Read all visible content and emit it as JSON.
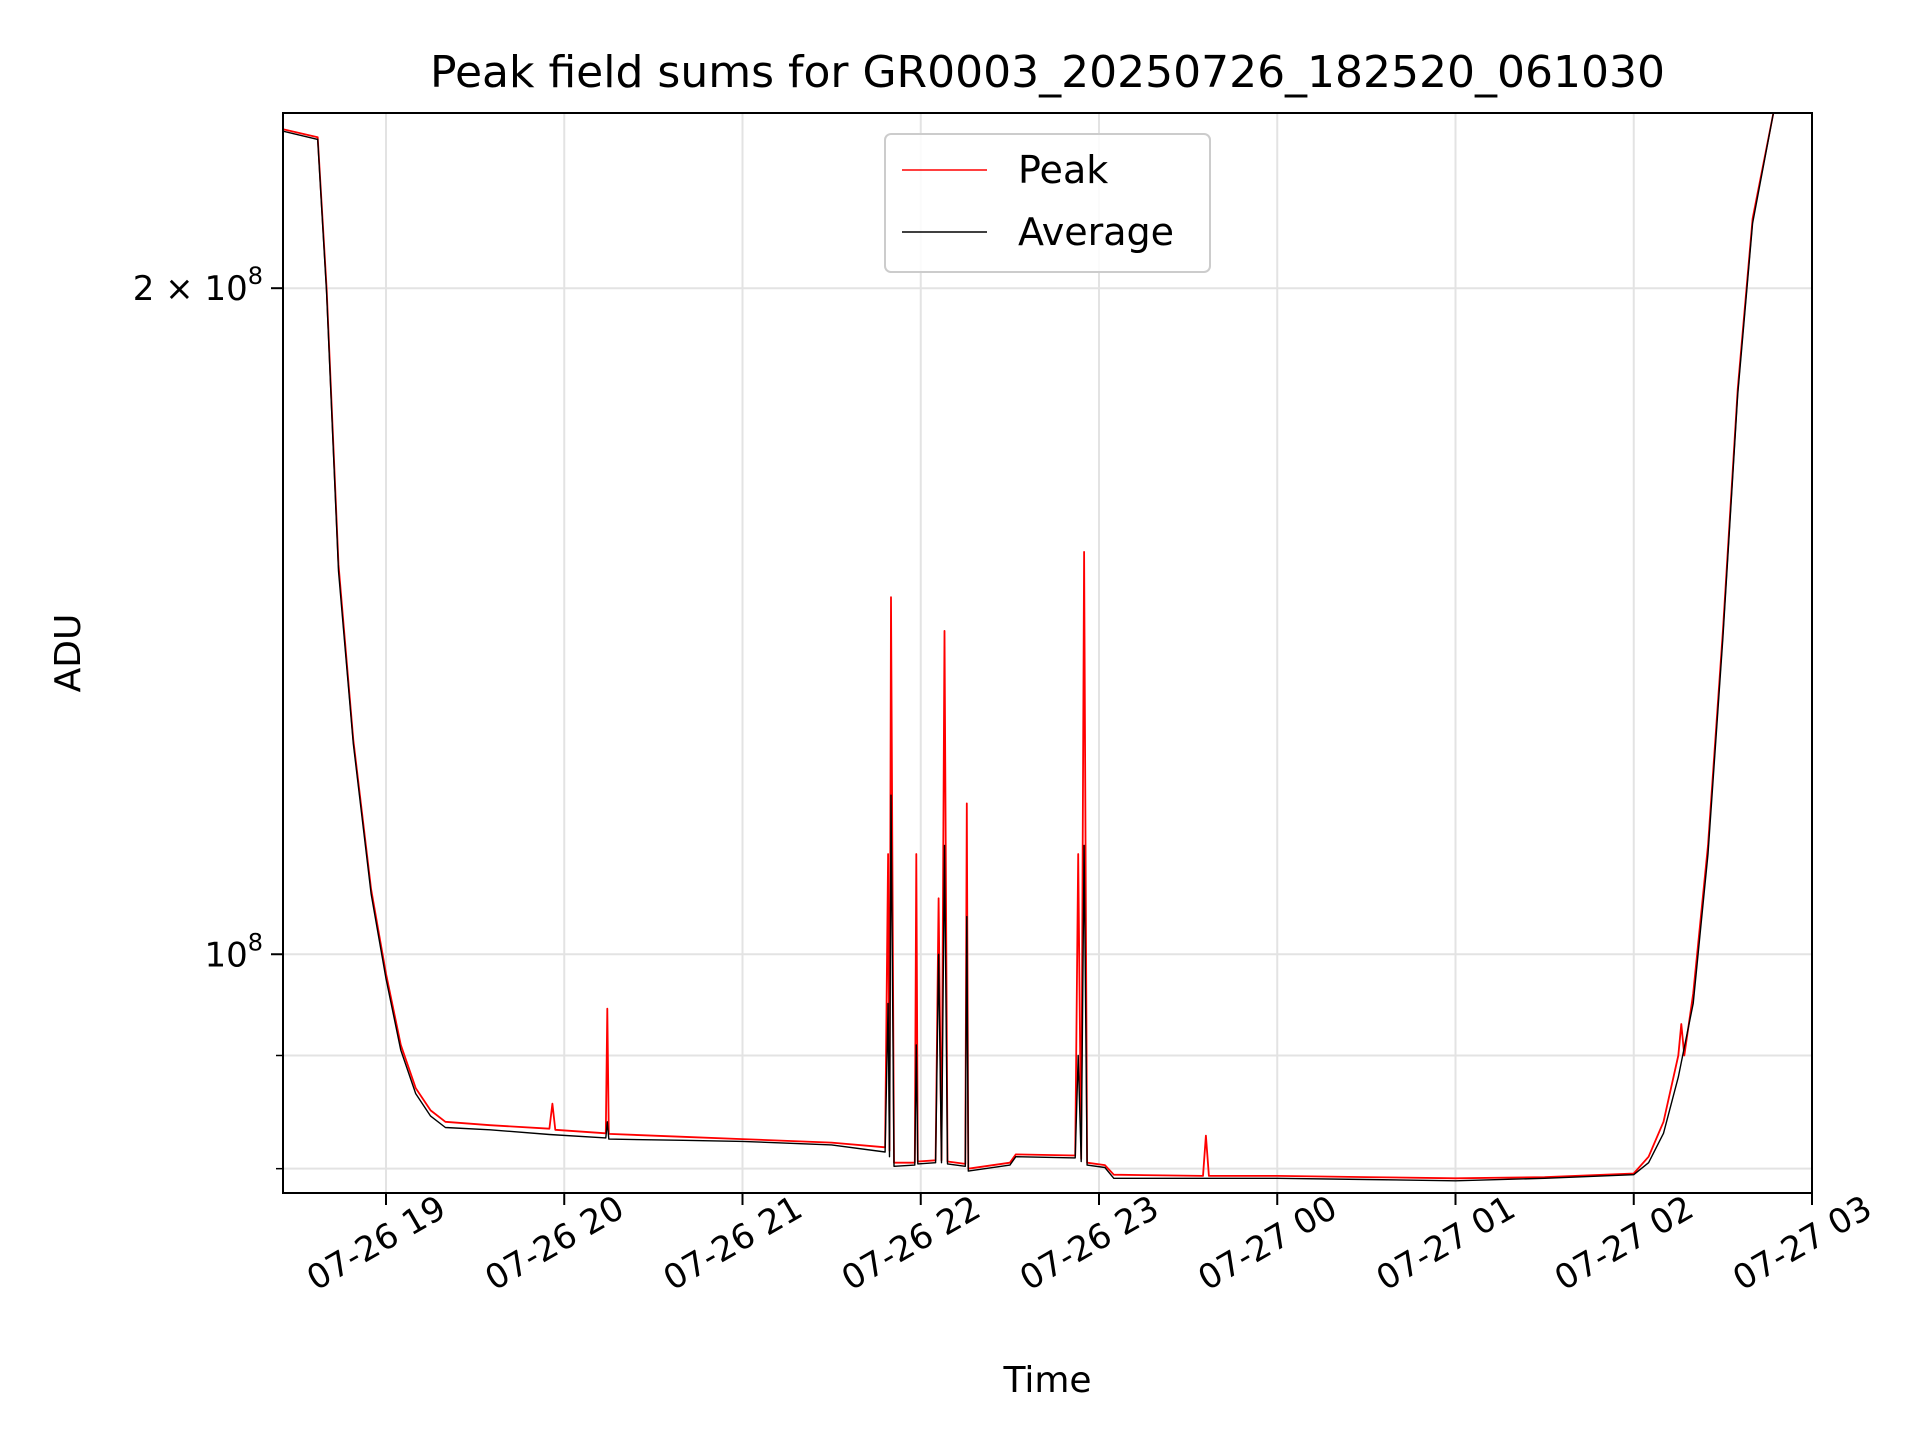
{
  "chart_data": {
    "type": "line",
    "title": "Peak field sums for GR0003_20250726_182520_061030",
    "xlabel": "Time",
    "ylabel": "ADU",
    "y_scale": "log",
    "grid": true,
    "legend_position": "top-center",
    "xlim": [
      "2025-07-26 18:25:20",
      "2025-07-27 03:00:00"
    ],
    "ylim": [
      78000000,
      240000000
    ],
    "x_ticks": [
      {
        "value": "2025-07-26 19:00",
        "label": "07-26 19"
      },
      {
        "value": "2025-07-26 20:00",
        "label": "07-26 20"
      },
      {
        "value": "2025-07-26 21:00",
        "label": "07-26 21"
      },
      {
        "value": "2025-07-26 22:00",
        "label": "07-26 22"
      },
      {
        "value": "2025-07-26 23:00",
        "label": "07-26 23"
      },
      {
        "value": "2025-07-27 00:00",
        "label": "07-27 00"
      },
      {
        "value": "2025-07-27 01:00",
        "label": "07-27 01"
      },
      {
        "value": "2025-07-27 02:00",
        "label": "07-27 02"
      },
      {
        "value": "2025-07-27 03:00",
        "label": "07-27 03"
      }
    ],
    "y_major_ticks": [
      {
        "value": 100000000,
        "base": "10",
        "exp": "8"
      },
      {
        "value": 200000000,
        "base": "2 × 10",
        "exp": "8"
      }
    ],
    "y_minor_ticks": [
      80000000,
      90000000
    ],
    "series": [
      {
        "name": "Peak",
        "color": "#ff0000",
        "points": [
          [
            "2025-07-26 18:25:20",
            236000000
          ],
          [
            "2025-07-26 18:37:00",
            234000000
          ],
          [
            "2025-07-26 18:40:00",
            200000000
          ],
          [
            "2025-07-26 18:44:00",
            150000000
          ],
          [
            "2025-07-26 18:49:00",
            125000000
          ],
          [
            "2025-07-26 18:55:00",
            107000000
          ],
          [
            "2025-07-26 19:00:00",
            98000000
          ],
          [
            "2025-07-26 19:05:00",
            91000000
          ],
          [
            "2025-07-26 19:10:00",
            87000000
          ],
          [
            "2025-07-26 19:15:00",
            85000000
          ],
          [
            "2025-07-26 19:20:00",
            84000000
          ],
          [
            "2025-07-26 19:35:00",
            83700000
          ],
          [
            "2025-07-26 19:55:00",
            83400000
          ],
          [
            "2025-07-26 19:56:00",
            85600000
          ],
          [
            "2025-07-26 19:57:00",
            83300000
          ],
          [
            "2025-07-26 20:14:00",
            83000000
          ],
          [
            "2025-07-26 20:14:30",
            94500000
          ],
          [
            "2025-07-26 20:15:00",
            82950000
          ],
          [
            "2025-07-26 20:40:00",
            82700000
          ],
          [
            "2025-07-26 21:00:00",
            82500000
          ],
          [
            "2025-07-26 21:30:00",
            82200000
          ],
          [
            "2025-07-26 21:48:00",
            81800000
          ],
          [
            "2025-07-26 21:49:00",
            111000000
          ],
          [
            "2025-07-26 21:49:30",
            81500000
          ],
          [
            "2025-07-26 21:50:00",
            145000000
          ],
          [
            "2025-07-26 21:51:00",
            80500000
          ],
          [
            "2025-07-26 21:58:00",
            80500000
          ],
          [
            "2025-07-26 21:58:30",
            111000000
          ],
          [
            "2025-07-26 21:59:00",
            80600000
          ],
          [
            "2025-07-26 22:05:00",
            80700000
          ],
          [
            "2025-07-26 22:06:00",
            106000000
          ],
          [
            "2025-07-26 22:07:00",
            80700000
          ],
          [
            "2025-07-26 22:08:00",
            140000000
          ],
          [
            "2025-07-26 22:09:00",
            80600000
          ],
          [
            "2025-07-26 22:15:00",
            80400000
          ],
          [
            "2025-07-26 22:15:30",
            117000000
          ],
          [
            "2025-07-26 22:16:00",
            80000000
          ],
          [
            "2025-07-26 22:30:00",
            80500000
          ],
          [
            "2025-07-26 22:32:00",
            81200000
          ],
          [
            "2025-07-26 22:52:00",
            81100000
          ],
          [
            "2025-07-26 22:53:00",
            111000000
          ],
          [
            "2025-07-26 22:54:00",
            80800000
          ],
          [
            "2025-07-26 22:55:00",
            152000000
          ],
          [
            "2025-07-26 22:56:00",
            80500000
          ],
          [
            "2025-07-26 23:02:00",
            80300000
          ],
          [
            "2025-07-26 23:05:00",
            79500000
          ],
          [
            "2025-07-26 23:35:00",
            79400000
          ],
          [
            "2025-07-26 23:36:00",
            82800000
          ],
          [
            "2025-07-26 23:37:00",
            79400000
          ],
          [
            "2025-07-27 00:00:00",
            79400000
          ],
          [
            "2025-07-27 00:30:00",
            79300000
          ],
          [
            "2025-07-27 01:00:00",
            79200000
          ],
          [
            "2025-07-27 01:30:00",
            79300000
          ],
          [
            "2025-07-27 02:00:00",
            79600000
          ],
          [
            "2025-07-27 02:05:00",
            81000000
          ],
          [
            "2025-07-27 02:10:00",
            84000000
          ],
          [
            "2025-07-27 02:15:00",
            90000000
          ],
          [
            "2025-07-27 02:16:00",
            93000000
          ],
          [
            "2025-07-27 02:17:00",
            90000000
          ],
          [
            "2025-07-27 02:20:00",
            96000000
          ],
          [
            "2025-07-27 02:25:00",
            112000000
          ],
          [
            "2025-07-27 02:30:00",
            140000000
          ],
          [
            "2025-07-27 02:35:00",
            180000000
          ],
          [
            "2025-07-27 02:40:00",
            215000000
          ],
          [
            "2025-07-27 02:47:00",
            240000000
          ]
        ]
      },
      {
        "name": "Average",
        "color": "#000000",
        "points": [
          [
            "2025-07-26 18:25:20",
            235500000
          ],
          [
            "2025-07-26 18:37:00",
            233500000
          ],
          [
            "2025-07-26 18:40:00",
            199000000
          ],
          [
            "2025-07-26 18:44:00",
            149000000
          ],
          [
            "2025-07-26 18:49:00",
            124500000
          ],
          [
            "2025-07-26 18:55:00",
            106500000
          ],
          [
            "2025-07-26 19:00:00",
            97500000
          ],
          [
            "2025-07-26 19:05:00",
            90500000
          ],
          [
            "2025-07-26 19:10:00",
            86500000
          ],
          [
            "2025-07-26 19:15:00",
            84500000
          ],
          [
            "2025-07-26 19:20:00",
            83500000
          ],
          [
            "2025-07-26 19:35:00",
            83300000
          ],
          [
            "2025-07-26 19:55:00",
            82900000
          ],
          [
            "2025-07-26 20:14:00",
            82600000
          ],
          [
            "2025-07-26 20:14:30",
            84000000
          ],
          [
            "2025-07-26 20:15:00",
            82500000
          ],
          [
            "2025-07-26 20:40:00",
            82400000
          ],
          [
            "2025-07-26 21:00:00",
            82300000
          ],
          [
            "2025-07-26 21:30:00",
            82000000
          ],
          [
            "2025-07-26 21:48:00",
            81400000
          ],
          [
            "2025-07-26 21:49:00",
            95000000
          ],
          [
            "2025-07-26 21:49:30",
            81000000
          ],
          [
            "2025-07-26 21:50:00",
            118000000
          ],
          [
            "2025-07-26 21:51:00",
            80200000
          ],
          [
            "2025-07-26 21:58:00",
            80300000
          ],
          [
            "2025-07-26 21:58:30",
            91000000
          ],
          [
            "2025-07-26 21:59:00",
            80400000
          ],
          [
            "2025-07-26 22:05:00",
            80500000
          ],
          [
            "2025-07-26 22:06:00",
            100000000
          ],
          [
            "2025-07-26 22:07:00",
            80500000
          ],
          [
            "2025-07-26 22:08:00",
            112000000
          ],
          [
            "2025-07-26 22:09:00",
            80400000
          ],
          [
            "2025-07-26 22:15:00",
            80200000
          ],
          [
            "2025-07-26 22:15:30",
            104000000
          ],
          [
            "2025-07-26 22:16:00",
            79800000
          ],
          [
            "2025-07-26 22:30:00",
            80300000
          ],
          [
            "2025-07-26 22:32:00",
            81000000
          ],
          [
            "2025-07-26 22:52:00",
            80900000
          ],
          [
            "2025-07-26 22:53:00",
            90000000
          ],
          [
            "2025-07-26 22:54:00",
            80600000
          ],
          [
            "2025-07-26 22:55:00",
            112000000
          ],
          [
            "2025-07-26 22:56:00",
            80300000
          ],
          [
            "2025-07-26 23:02:00",
            80100000
          ],
          [
            "2025-07-26 23:05:00",
            79200000
          ],
          [
            "2025-07-27 00:00:00",
            79200000
          ],
          [
            "2025-07-27 00:30:00",
            79100000
          ],
          [
            "2025-07-27 01:00:00",
            79000000
          ],
          [
            "2025-07-27 01:30:00",
            79200000
          ],
          [
            "2025-07-27 02:00:00",
            79500000
          ],
          [
            "2025-07-27 02:05:00",
            80500000
          ],
          [
            "2025-07-27 02:10:00",
            83000000
          ],
          [
            "2025-07-27 02:15:00",
            88000000
          ],
          [
            "2025-07-27 02:20:00",
            95000000
          ],
          [
            "2025-07-27 02:25:00",
            111000000
          ],
          [
            "2025-07-27 02:30:00",
            139000000
          ],
          [
            "2025-07-27 02:35:00",
            179000000
          ],
          [
            "2025-07-27 02:40:00",
            214000000
          ],
          [
            "2025-07-27 02:47:00",
            240000000
          ]
        ]
      }
    ]
  }
}
